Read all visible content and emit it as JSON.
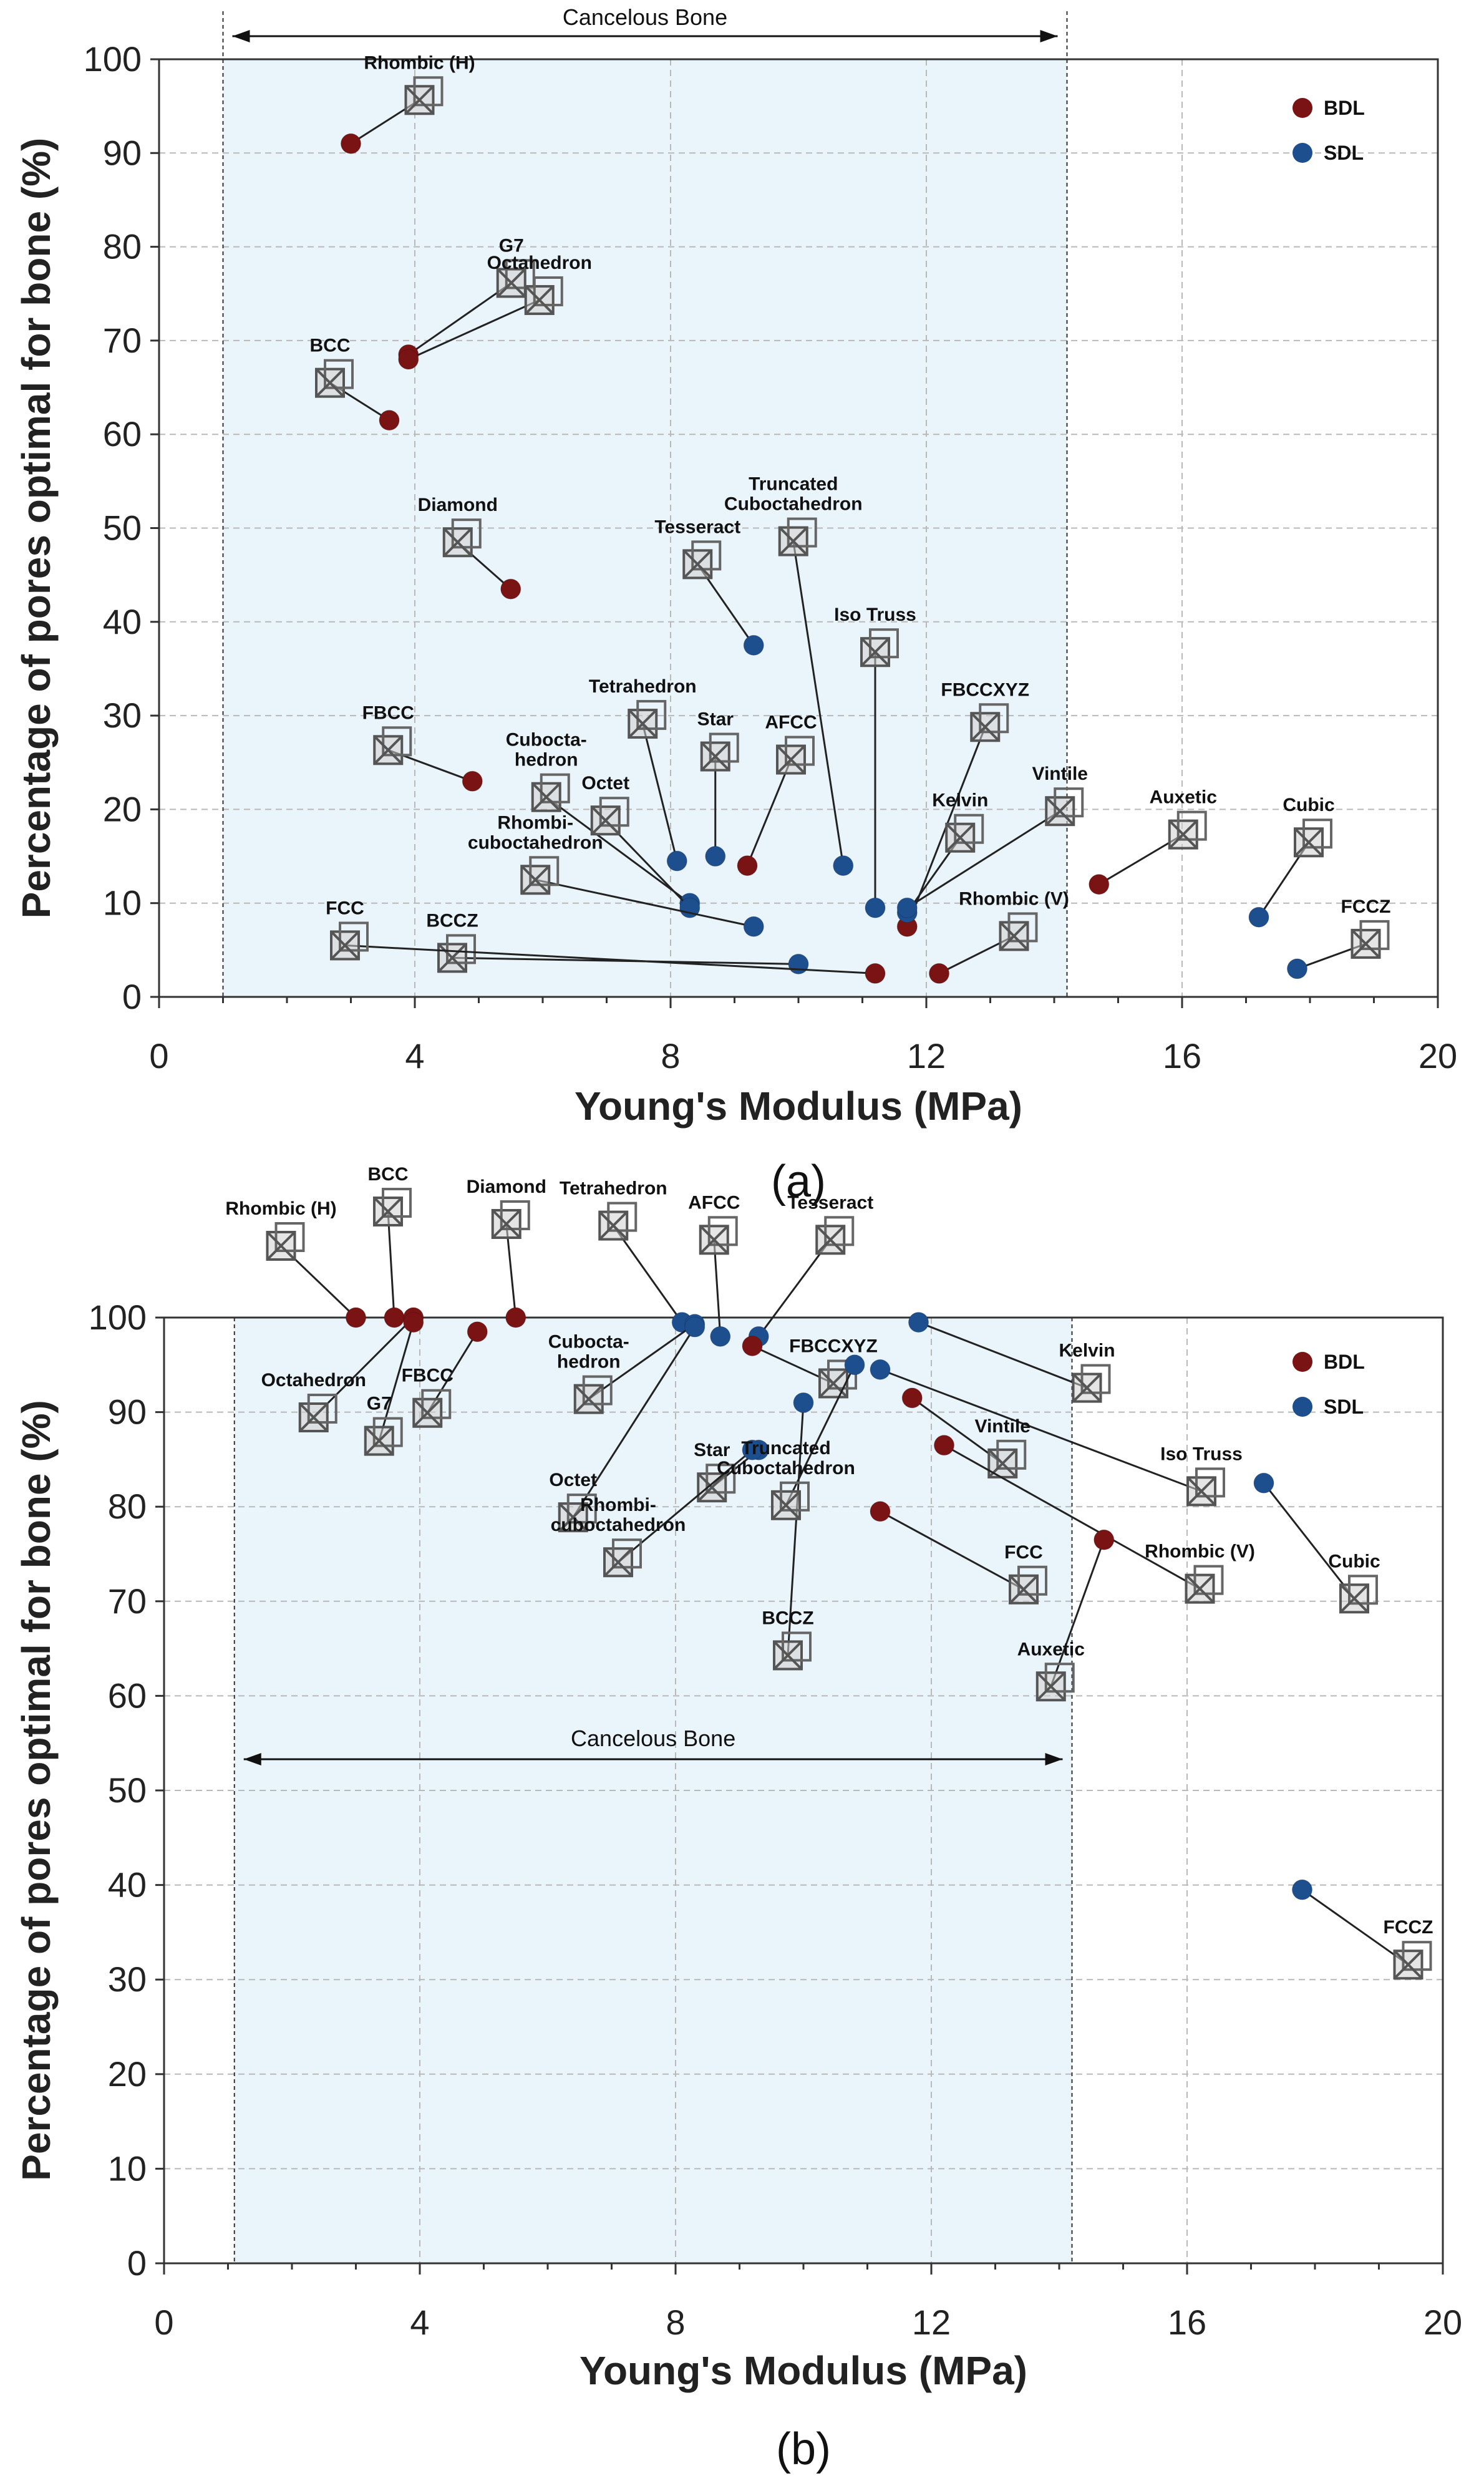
{
  "colors": {
    "BDL": "#7a1414",
    "SDL": "#1d4f8f",
    "band": "#eaf4fb",
    "grid": "#b9b9b9"
  },
  "chart_data": [
    {
      "type": "scatter",
      "caption": "(a)",
      "xlabel": "Young's Modulus (MPa)",
      "ylabel": "Percentage of pores optimal for bone (%)",
      "xlim": [
        0,
        20
      ],
      "ylim": [
        0,
        100
      ],
      "xticks": [
        0,
        4,
        8,
        12,
        16,
        20
      ],
      "yticks": [
        0,
        10,
        20,
        30,
        40,
        50,
        60,
        70,
        80,
        90,
        100
      ],
      "grid": true,
      "legend_position": "top-right",
      "legend": [
        "BDL",
        "SDL"
      ],
      "region": {
        "label": "Cancelous Bone",
        "x": [
          1.0,
          14.2
        ],
        "label_position": "top"
      },
      "points": [
        {
          "name": "Rhombic (H)",
          "series": "BDL",
          "x": 3.0,
          "y": 91
        },
        {
          "name": "G7",
          "series": "BDL",
          "x": 3.9,
          "y": 68.5
        },
        {
          "name": "Octahedron",
          "series": "BDL",
          "x": 3.9,
          "y": 68
        },
        {
          "name": "BCC",
          "series": "BDL",
          "x": 3.6,
          "y": 61.5
        },
        {
          "name": "Diamond",
          "series": "BDL",
          "x": 5.5,
          "y": 43.5
        },
        {
          "name": "FBCC",
          "series": "BDL",
          "x": 4.9,
          "y": 23
        },
        {
          "name": "Tesseract",
          "series": "SDL",
          "x": 9.3,
          "y": 37.5
        },
        {
          "name": "Tetrahedron",
          "series": "SDL",
          "x": 8.1,
          "y": 14.5
        },
        {
          "name": "Star",
          "series": "SDL",
          "x": 8.7,
          "y": 15
        },
        {
          "name": "AFCC",
          "series": "BDL",
          "x": 9.2,
          "y": 14
        },
        {
          "name": "Cuboctahedron",
          "series": "SDL",
          "x": 8.3,
          "y": 10
        },
        {
          "name": "Octet",
          "series": "SDL",
          "x": 8.3,
          "y": 9.5
        },
        {
          "name": "Rhombicuboctahedron",
          "series": "SDL",
          "x": 9.3,
          "y": 7.5
        },
        {
          "name": "Truncated Cuboctahedron",
          "series": "SDL",
          "x": 10.7,
          "y": 14
        },
        {
          "name": "Iso Truss",
          "series": "SDL",
          "x": 11.2,
          "y": 9.5
        },
        {
          "name": "FBCCXYZ",
          "series": "BDL",
          "x": 11.7,
          "y": 7.5
        },
        {
          "name": "Kelvin",
          "series": "SDL",
          "x": 11.7,
          "y": 9
        },
        {
          "name": "Vintile",
          "series": "SDL",
          "x": 11.7,
          "y": 9.5
        },
        {
          "name": "BCCZ",
          "series": "SDL",
          "x": 10.0,
          "y": 3.5
        },
        {
          "name": "FCC",
          "series": "BDL",
          "x": 11.2,
          "y": 2.5
        },
        {
          "name": "Rhombic (V)",
          "series": "BDL",
          "x": 12.2,
          "y": 2.5
        },
        {
          "name": "Auxetic",
          "series": "BDL",
          "x": 14.7,
          "y": 12
        },
        {
          "name": "Cubic",
          "series": "SDL",
          "x": 17.2,
          "y": 8.5
        },
        {
          "name": "FCCZ",
          "series": "SDL",
          "x": 17.8,
          "y": 3
        }
      ]
    },
    {
      "type": "scatter",
      "caption": "(b)",
      "xlabel": "Young's Modulus (MPa)",
      "ylabel": "Percentage of pores optimal for bone (%)",
      "xlim": [
        0,
        20
      ],
      "ylim": [
        0,
        100
      ],
      "xticks": [
        0,
        4,
        8,
        12,
        16,
        20
      ],
      "yticks": [
        0,
        10,
        20,
        30,
        40,
        50,
        60,
        70,
        80,
        90,
        100
      ],
      "grid": true,
      "legend_position": "top-right",
      "legend": [
        "BDL",
        "SDL"
      ],
      "region": {
        "label": "Cancelous Bone",
        "x": [
          1.1,
          14.2
        ],
        "label_position": "middle"
      },
      "points": [
        {
          "name": "Rhombic (H)",
          "series": "BDL",
          "x": 3.0,
          "y": 100
        },
        {
          "name": "BCC",
          "series": "BDL",
          "x": 3.6,
          "y": 100
        },
        {
          "name": "Octahedron",
          "series": "BDL",
          "x": 3.9,
          "y": 100
        },
        {
          "name": "G7",
          "series": "BDL",
          "x": 3.9,
          "y": 99.5
        },
        {
          "name": "FBCC",
          "series": "BDL",
          "x": 4.9,
          "y": 98.5
        },
        {
          "name": "Diamond",
          "series": "BDL",
          "x": 5.5,
          "y": 100
        },
        {
          "name": "Tetrahedron",
          "series": "SDL",
          "x": 8.1,
          "y": 99.5
        },
        {
          "name": "Cuboctahedron",
          "series": "SDL",
          "x": 8.3,
          "y": 99.3
        },
        {
          "name": "Octet",
          "series": "SDL",
          "x": 8.3,
          "y": 99.0
        },
        {
          "name": "AFCC",
          "series": "SDL",
          "x": 8.7,
          "y": 98
        },
        {
          "name": "Tesseract",
          "series": "SDL",
          "x": 9.3,
          "y": 98
        },
        {
          "name": "FBCCXYZ",
          "series": "BDL",
          "x": 9.2,
          "y": 97
        },
        {
          "name": "Star",
          "series": "SDL",
          "x": 9.3,
          "y": 86
        },
        {
          "name": "Rhombicuboctahedron",
          "series": "SDL",
          "x": 9.2,
          "y": 86
        },
        {
          "name": "BCCZ",
          "series": "SDL",
          "x": 10.0,
          "y": 91
        },
        {
          "name": "Truncated Cuboctahedron",
          "series": "SDL",
          "x": 10.8,
          "y": 95
        },
        {
          "name": "Iso Truss",
          "series": "SDL",
          "x": 11.2,
          "y": 94.5
        },
        {
          "name": "Kelvin",
          "series": "SDL",
          "x": 11.8,
          "y": 99.5
        },
        {
          "name": "Vintile",
          "series": "BDL",
          "x": 11.7,
          "y": 91.5
        },
        {
          "name": "Rhombic (V)",
          "series": "BDL",
          "x": 12.2,
          "y": 86.5
        },
        {
          "name": "FCC",
          "series": "BDL",
          "x": 11.2,
          "y": 79.5
        },
        {
          "name": "Auxetic",
          "series": "BDL",
          "x": 14.7,
          "y": 76.5
        },
        {
          "name": "Cubic",
          "series": "SDL",
          "x": 17.2,
          "y": 82.5
        },
        {
          "name": "FCCZ",
          "series": "SDL",
          "x": 17.8,
          "y": 39.5
        }
      ]
    }
  ]
}
